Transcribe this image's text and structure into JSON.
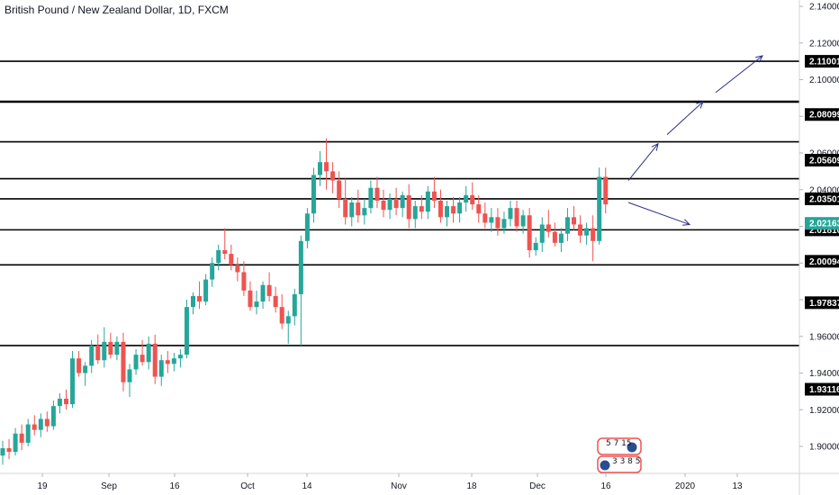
{
  "chart_data": {
    "type": "candlestick",
    "title": "British Pound / New Zealand Dollar, 1D, FXCM",
    "y_ticks": [
      "2.14000",
      "2.12000",
      "2.10000",
      "2.08000",
      "2.06000",
      "2.04000",
      "2.02000",
      "2.00000",
      "1.98000",
      "1.96000",
      "1.94000",
      "1.92000",
      "1.90000"
    ],
    "ylim": [
      1.885,
      2.142
    ],
    "x_ticks": [
      "19",
      "Sep",
      "16",
      "Oct",
      "14",
      "Nov",
      "18",
      "Dec",
      "16",
      "2020",
      "13"
    ],
    "levels": [
      {
        "value": 2.11001,
        "label": "2.11001"
      },
      {
        "value": 2.08799,
        "label": ""
      },
      {
        "value": 2.06609,
        "label": ""
      },
      {
        "value": 2.046,
        "label": ""
      },
      {
        "value": 2.03501,
        "label": "2.03501"
      },
      {
        "value": 2.0181,
        "label": "2.01810"
      },
      {
        "value": 1.999,
        "label": ""
      },
      {
        "value": 1.955,
        "label": ""
      }
    ],
    "price_tags": [
      {
        "value": 2.08099,
        "label": "2.08099"
      },
      {
        "value": 2.05609,
        "label": "2.05609"
      },
      {
        "value": 2.00094,
        "label": "2.00094"
      },
      {
        "value": 1.97837,
        "label": "1.97837"
      },
      {
        "value": 1.93116,
        "label": "1.93116"
      }
    ],
    "current_price": {
      "value": 2.02163,
      "label": "2.02163"
    },
    "arrows": [
      {
        "from": [
          0,
          2.045
        ],
        "to": [
          0,
          2.065
        ],
        "note": "up-1"
      },
      {
        "from": [
          0,
          2.07
        ],
        "to": [
          0,
          2.088
        ],
        "note": "up-2"
      },
      {
        "from": [
          0,
          2.093
        ],
        "to": [
          0,
          2.113
        ],
        "note": "up-3"
      },
      {
        "from": [
          0,
          2.033
        ],
        "to": [
          0,
          2.021
        ],
        "note": "down"
      }
    ],
    "candles": [
      [
        1.895,
        1.903,
        1.89,
        1.899
      ],
      [
        1.899,
        1.904,
        1.893,
        1.897
      ],
      [
        1.897,
        1.91,
        1.895,
        1.907
      ],
      [
        1.907,
        1.912,
        1.898,
        1.902
      ],
      [
        1.902,
        1.915,
        1.9,
        1.912
      ],
      [
        1.912,
        1.917,
        1.906,
        1.909
      ],
      [
        1.909,
        1.918,
        1.905,
        1.915
      ],
      [
        1.915,
        1.919,
        1.908,
        1.911
      ],
      [
        1.911,
        1.925,
        1.909,
        1.922
      ],
      [
        1.922,
        1.929,
        1.918,
        1.926
      ],
      [
        1.926,
        1.931,
        1.92,
        1.923
      ],
      [
        1.923,
        1.952,
        1.921,
        1.948
      ],
      [
        1.948,
        1.952,
        1.938,
        1.94
      ],
      [
        1.94,
        1.946,
        1.933,
        1.944
      ],
      [
        1.944,
        1.958,
        1.94,
        1.955
      ],
      [
        1.955,
        1.961,
        1.945,
        1.947
      ],
      [
        1.947,
        1.965,
        1.943,
        1.957
      ],
      [
        1.957,
        1.962,
        1.948,
        1.95
      ],
      [
        1.95,
        1.96,
        1.947,
        1.957
      ],
      [
        1.957,
        1.962,
        1.93,
        1.935
      ],
      [
        1.935,
        1.945,
        1.927,
        1.942
      ],
      [
        1.942,
        1.953,
        1.939,
        1.95
      ],
      [
        1.95,
        1.958,
        1.944,
        1.946
      ],
      [
        1.946,
        1.96,
        1.942,
        1.956
      ],
      [
        1.956,
        1.961,
        1.934,
        1.938
      ],
      [
        1.938,
        1.95,
        1.933,
        1.947
      ],
      [
        1.947,
        1.952,
        1.94,
        1.945
      ],
      [
        1.945,
        1.951,
        1.941,
        1.948
      ],
      [
        1.948,
        1.953,
        1.943,
        1.95
      ],
      [
        1.95,
        1.98,
        1.948,
        1.976
      ],
      [
        1.976,
        1.984,
        1.972,
        1.982
      ],
      [
        1.982,
        1.99,
        1.975,
        1.979
      ],
      [
        1.979,
        1.994,
        1.977,
        1.991
      ],
      [
        1.991,
        2.003,
        1.987,
        2.0
      ],
      [
        2.0,
        2.01,
        1.996,
        2.007
      ],
      [
        2.007,
        2.019,
        2.002,
        2.005
      ],
      [
        2.005,
        2.01,
        1.996,
        1.999
      ],
      [
        1.999,
        2.003,
        1.99,
        1.995
      ],
      [
        1.995,
        2.001,
        1.982,
        1.985
      ],
      [
        1.985,
        1.99,
        1.974,
        1.976
      ],
      [
        1.976,
        1.985,
        1.972,
        1.979
      ],
      [
        1.979,
        1.99,
        1.975,
        1.988
      ],
      [
        1.988,
        1.995,
        1.979,
        1.982
      ],
      [
        1.982,
        1.987,
        1.973,
        1.976
      ],
      [
        1.976,
        1.983,
        1.964,
        1.967
      ],
      [
        1.967,
        1.974,
        1.956,
        1.971
      ],
      [
        1.971,
        1.986,
        1.966,
        1.983
      ],
      [
        1.983,
        2.015,
        1.955,
        2.012
      ],
      [
        2.012,
        2.03,
        2.008,
        2.027
      ],
      [
        2.027,
        2.052,
        2.022,
        2.048
      ],
      [
        2.048,
        2.061,
        2.042,
        2.055
      ],
      [
        2.055,
        2.068,
        2.04,
        2.05
      ],
      [
        2.05,
        2.055,
        2.038,
        2.045
      ],
      [
        2.045,
        2.05,
        2.03,
        2.035
      ],
      [
        2.035,
        2.046,
        2.021,
        2.025
      ],
      [
        2.025,
        2.036,
        2.02,
        2.033
      ],
      [
        2.033,
        2.04,
        2.022,
        2.026
      ],
      [
        2.026,
        2.035,
        2.021,
        2.03
      ],
      [
        2.03,
        2.045,
        2.027,
        2.041
      ],
      [
        2.041,
        2.047,
        2.03,
        2.034
      ],
      [
        2.034,
        2.04,
        2.025,
        2.029
      ],
      [
        2.029,
        2.038,
        2.024,
        2.035
      ],
      [
        2.035,
        2.041,
        2.026,
        2.03
      ],
      [
        2.03,
        2.039,
        2.025,
        2.037
      ],
      [
        2.037,
        2.043,
        2.019,
        2.024
      ],
      [
        2.024,
        2.034,
        2.019,
        2.031
      ],
      [
        2.031,
        2.037,
        2.024,
        2.028
      ],
      [
        2.028,
        2.042,
        2.024,
        2.039
      ],
      [
        2.039,
        2.047,
        2.03,
        2.034
      ],
      [
        2.034,
        2.04,
        2.022,
        2.025
      ],
      [
        2.025,
        2.034,
        2.02,
        2.031
      ],
      [
        2.031,
        2.036,
        2.022,
        2.027
      ],
      [
        2.027,
        2.036,
        2.022,
        2.033
      ],
      [
        2.033,
        2.042,
        2.028,
        2.037
      ],
      [
        2.037,
        2.044,
        2.029,
        2.032
      ],
      [
        2.032,
        2.037,
        2.022,
        2.027
      ],
      [
        2.027,
        2.033,
        2.019,
        2.022
      ],
      [
        2.022,
        2.03,
        2.017,
        2.025
      ],
      [
        2.025,
        2.03,
        2.015,
        2.019
      ],
      [
        2.019,
        2.028,
        2.016,
        2.024
      ],
      [
        2.024,
        2.034,
        2.02,
        2.03
      ],
      [
        2.03,
        2.034,
        2.017,
        2.02
      ],
      [
        2.02,
        2.029,
        2.016,
        2.026
      ],
      [
        2.026,
        2.03,
        2.003,
        2.007
      ],
      [
        2.007,
        2.014,
        2.004,
        2.011
      ],
      [
        2.011,
        2.025,
        2.006,
        2.021
      ],
      [
        2.021,
        2.029,
        2.014,
        2.017
      ],
      [
        2.017,
        2.022,
        2.009,
        2.011
      ],
      [
        2.011,
        2.019,
        2.006,
        2.016
      ],
      [
        2.016,
        2.03,
        2.012,
        2.025
      ],
      [
        2.025,
        2.031,
        2.018,
        2.021
      ],
      [
        2.021,
        2.026,
        2.011,
        2.015
      ],
      [
        2.015,
        2.022,
        2.01,
        2.019
      ],
      [
        2.019,
        2.026,
        2.001,
        2.012
      ],
      [
        2.012,
        2.052,
        2.01,
        2.047
      ],
      [
        2.047,
        2.052,
        2.027,
        2.032
      ]
    ]
  },
  "badges": {
    "top": "5 7 15",
    "bottom": "3 3 8 5"
  },
  "colors": {
    "up": "#26a69a",
    "down": "#ef5350",
    "level_line": "#000000",
    "arrow": "#2a2e87",
    "current_tag": "#26a69a",
    "axis_line": "#d1d4dc",
    "tag_bg": "#000000",
    "tag_text": "#ffffff"
  }
}
